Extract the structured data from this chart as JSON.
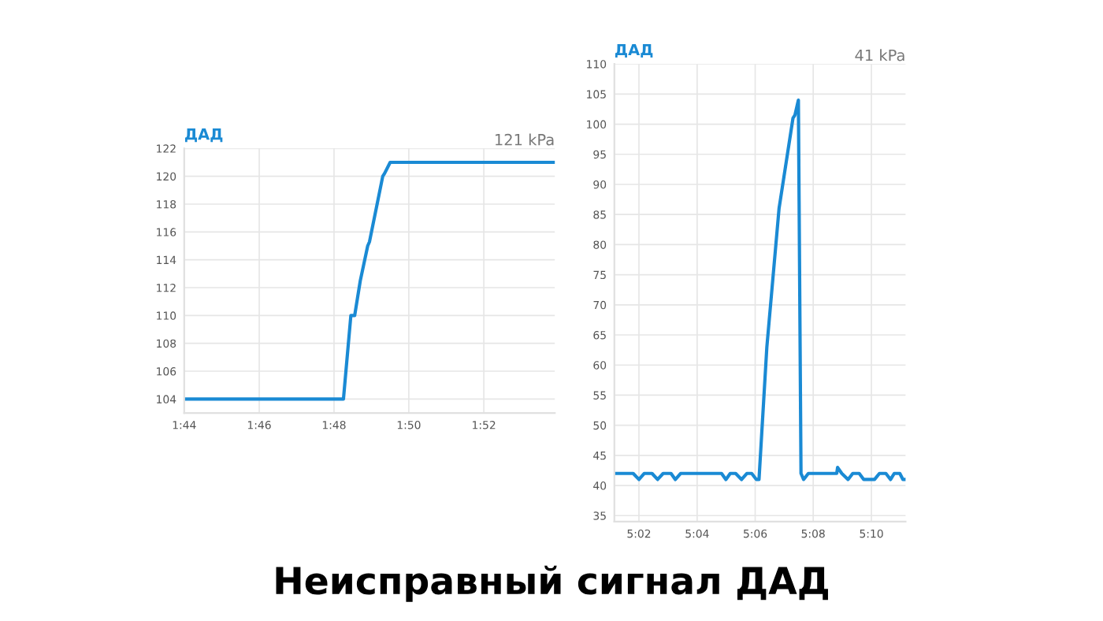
{
  "chart_data": [
    {
      "type": "line",
      "title": "ДАД",
      "annotations": [
        "121 kPa"
      ],
      "grid": true,
      "line_style": "solid",
      "x": [
        1.7333,
        1.8042,
        1.8075,
        1.8092,
        1.8117,
        1.815,
        1.8158,
        1.8217,
        1.8225,
        1.825,
        1.8983
      ],
      "series": [
        {
          "color": "#1a8ad4",
          "values": [
            104,
            104,
            110,
            110,
            112.5,
            115,
            115.3,
            120,
            120.2,
            121,
            121
          ]
        }
      ],
      "xlim": [
        1.7333,
        1.8983
      ],
      "ylim": [
        103,
        122
      ],
      "xticks": [
        {
          "value": 1.7333,
          "label": "1:44"
        },
        {
          "value": 1.7667,
          "label": "1:46"
        },
        {
          "value": 1.8,
          "label": "1:48"
        },
        {
          "value": 1.8333,
          "label": "1:50"
        },
        {
          "value": 1.8667,
          "label": "1:52"
        }
      ],
      "yticks": [
        104,
        106,
        108,
        110,
        112,
        114,
        116,
        118,
        120,
        122
      ]
    },
    {
      "type": "line",
      "title": "ДАД",
      "annotations": [
        "41 kPa",
        "Неисправный сигнал ДАД"
      ],
      "grid": true,
      "line_style": "solid",
      "x": [
        5.0192,
        5.03,
        5.0333,
        5.0363,
        5.0408,
        5.044,
        5.0472,
        5.0517,
        5.0542,
        5.0572,
        5.0807,
        5.0832,
        5.0857,
        5.0888,
        5.0922,
        5.0952,
        5.098,
        5.1007,
        5.1022,
        5.1067,
        5.1137,
        5.1217,
        5.1228,
        5.1248,
        5.1263,
        5.1278,
        5.1305,
        5.1468,
        5.1473,
        5.1497,
        5.1533,
        5.156,
        5.1597,
        5.1623,
        5.1685,
        5.1713,
        5.175,
        5.1777,
        5.1798,
        5.183,
        5.1848,
        5.1863
      ],
      "series": [
        {
          "color": "#1a8ad4",
          "values": [
            42,
            42,
            41,
            42,
            42,
            41,
            42,
            42,
            41,
            42,
            42,
            41,
            42,
            42,
            41,
            42,
            42,
            41,
            41,
            63,
            86,
            101,
            101.5,
            104,
            42,
            41,
            42,
            42,
            43,
            42,
            41,
            42,
            42,
            41,
            41,
            42,
            42,
            41,
            42,
            42,
            41,
            41
          ]
        }
      ],
      "xlim": [
        5.0192,
        5.1863
      ],
      "ylim": [
        34,
        110
      ],
      "xticks": [
        {
          "value": 5.0333,
          "label": "5:02"
        },
        {
          "value": 5.0667,
          "label": "5:04"
        },
        {
          "value": 5.1,
          "label": "5:06"
        },
        {
          "value": 5.1333,
          "label": "5:08"
        },
        {
          "value": 5.1667,
          "label": "5:10"
        }
      ],
      "yticks": [
        35,
        40,
        45,
        50,
        55,
        60,
        65,
        70,
        75,
        80,
        85,
        90,
        95,
        100,
        105,
        110
      ]
    }
  ]
}
